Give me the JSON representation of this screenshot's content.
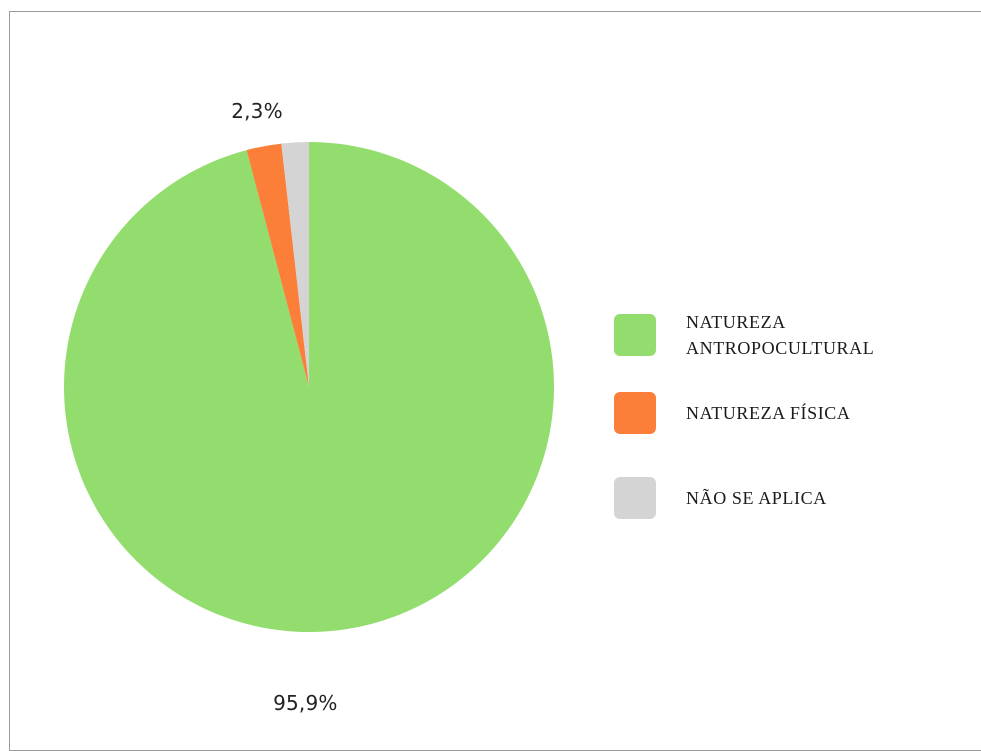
{
  "chart_data": {
    "type": "pie",
    "title": "",
    "slices": [
      {
        "label": "NATUREZA ANTROPOCULTURAL",
        "value": 95.9,
        "display": "95,9%",
        "color": "#93dd6f"
      },
      {
        "label": "NATUREZA FÍSICA",
        "value": 2.3,
        "display": "2,3%",
        "color": "#fb7f39"
      },
      {
        "label": "NÃO SE APLICA",
        "value": 1.8,
        "display": "",
        "color": "#d4d4d4"
      }
    ],
    "start_angle_deg": 0,
    "direction": "clockwise",
    "legend_position": "right"
  }
}
